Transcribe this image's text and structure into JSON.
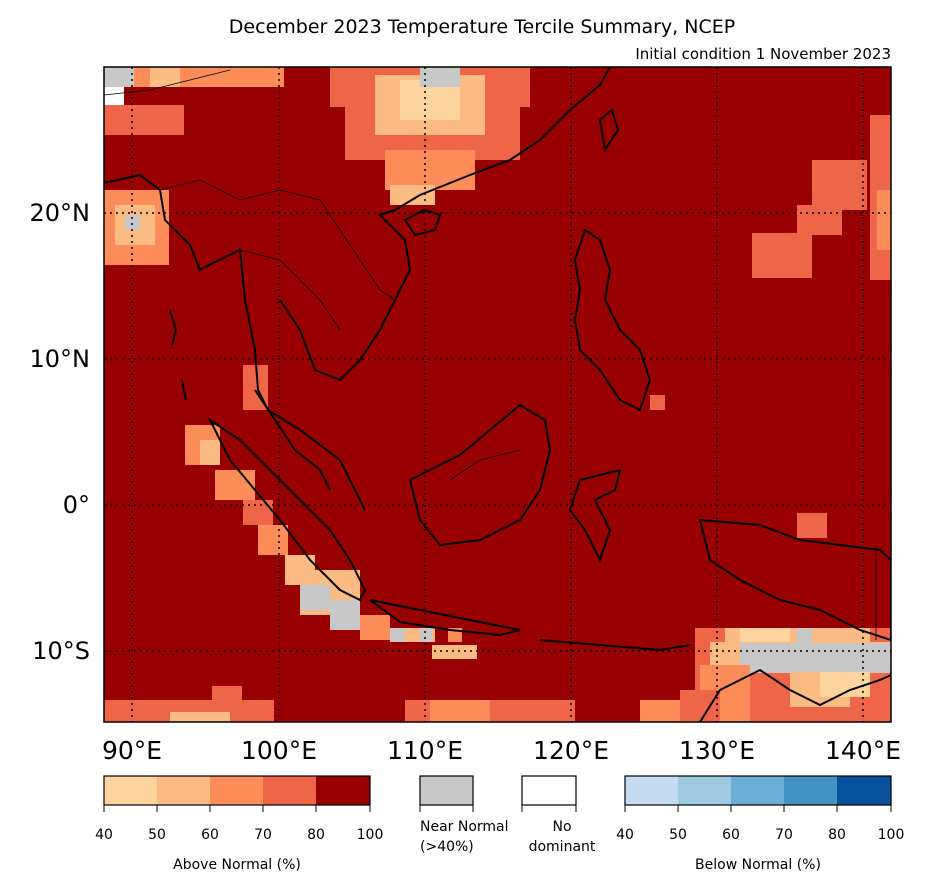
{
  "title": "December 2023 Temperature Tercile Summary, NCEP",
  "subtitle": "Initial condition 1 November 2023",
  "map": {
    "lat_labels": [
      "20°N",
      "10°N",
      "0°",
      "10°S"
    ],
    "lon_labels": [
      "90°E",
      "100°E",
      "110°E",
      "120°E",
      "130°E",
      "140°E"
    ],
    "background_color": "#990000"
  },
  "legend": {
    "above": {
      "caption": "Above Normal (%)",
      "ticks": [
        "40",
        "50",
        "60",
        "70",
        "80",
        "100"
      ],
      "colors": [
        "#fdd49e",
        "#fdbb84",
        "#fc8d59",
        "#ef6548",
        "#990000"
      ]
    },
    "near": {
      "caption_line1": "Near Normal",
      "caption_line2": "(>40%)",
      "color": "#c8c8c8"
    },
    "nodom": {
      "caption_line1": "No",
      "caption_line2": "dominant",
      "color": "#ffffff"
    },
    "below": {
      "caption": "Below Normal (%)",
      "ticks": [
        "40",
        "50",
        "60",
        "70",
        "80",
        "100"
      ],
      "colors": [
        "#c6dbef",
        "#9ecae1",
        "#6baed6",
        "#4292c6",
        "#08519c"
      ]
    }
  }
}
